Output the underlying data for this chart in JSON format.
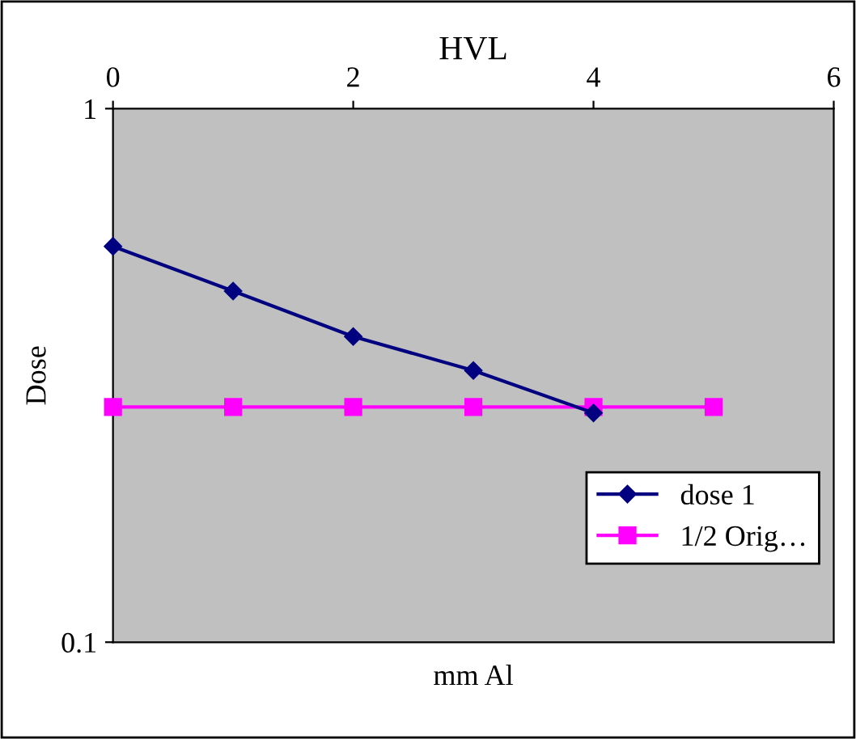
{
  "chart_data": {
    "type": "line",
    "title": "HVL",
    "xlabel": "mm Al",
    "ylabel": "Dose",
    "log": "y",
    "xlim": [
      0,
      6
    ],
    "xticks": [
      0,
      2,
      4,
      6
    ],
    "ylim": [
      0.1,
      1
    ],
    "yticks": [
      0.1,
      1
    ],
    "grid": false,
    "legend": "bottom right",
    "series": [
      {
        "name": "dose 1",
        "color": "#000080",
        "marker": "diamond",
        "x": [
          0,
          1,
          2,
          3,
          4
        ],
        "values": [
          0.552,
          0.455,
          0.374,
          0.323,
          0.269
        ]
      },
      {
        "name": "1/2 Orig…",
        "color": "#ff00ff",
        "marker": "square",
        "x": [
          0,
          1,
          2,
          3,
          4,
          5
        ],
        "values": [
          0.276,
          0.276,
          0.276,
          0.276,
          0.276,
          0.276
        ]
      }
    ]
  }
}
